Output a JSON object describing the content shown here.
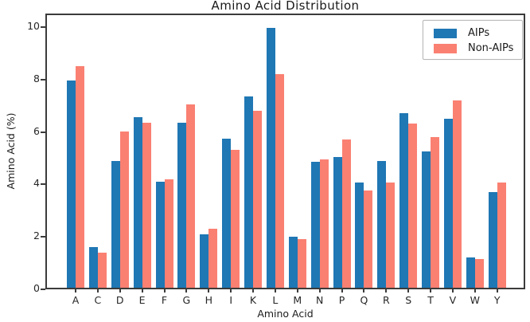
{
  "figure": {
    "title": "Amino Acid Distribution",
    "xlabel": "Amino Acid",
    "ylabel": "Amino Acid (%)"
  },
  "legend": {
    "entries": [
      {
        "label": "AIPs",
        "color": "#1f77b4"
      },
      {
        "label": "Non-AIPs",
        "color": "#fa8072"
      }
    ],
    "position": "upper right"
  },
  "chart_data": {
    "type": "bar",
    "title": "Amino Acid Distribution",
    "xlabel": "Amino Acid",
    "ylabel": "Amino Acid (%)",
    "categories": [
      "A",
      "C",
      "D",
      "E",
      "F",
      "G",
      "H",
      "I",
      "K",
      "L",
      "M",
      "N",
      "P",
      "Q",
      "R",
      "S",
      "T",
      "V",
      "W",
      "Y"
    ],
    "series": [
      {
        "name": "AIPs",
        "color": "#1f77b4",
        "values": [
          7.9,
          1.55,
          4.85,
          6.5,
          4.05,
          6.3,
          2.05,
          5.7,
          7.3,
          9.9,
          1.95,
          4.8,
          5.0,
          4.0,
          4.85,
          6.65,
          5.2,
          6.45,
          1.15,
          3.65
        ]
      },
      {
        "name": "Non-AIPs",
        "color": "#fa8072",
        "values": [
          8.45,
          1.35,
          5.95,
          6.3,
          4.15,
          7.0,
          2.25,
          5.25,
          6.75,
          8.15,
          1.85,
          4.9,
          5.65,
          3.7,
          4.0,
          6.25,
          5.75,
          7.15,
          1.1,
          4.0
        ]
      }
    ],
    "ylim": [
      0,
      10.4
    ],
    "yticks": [
      0,
      2,
      4,
      6,
      8,
      10
    ],
    "grid": false,
    "legend_position": "upper right"
  }
}
